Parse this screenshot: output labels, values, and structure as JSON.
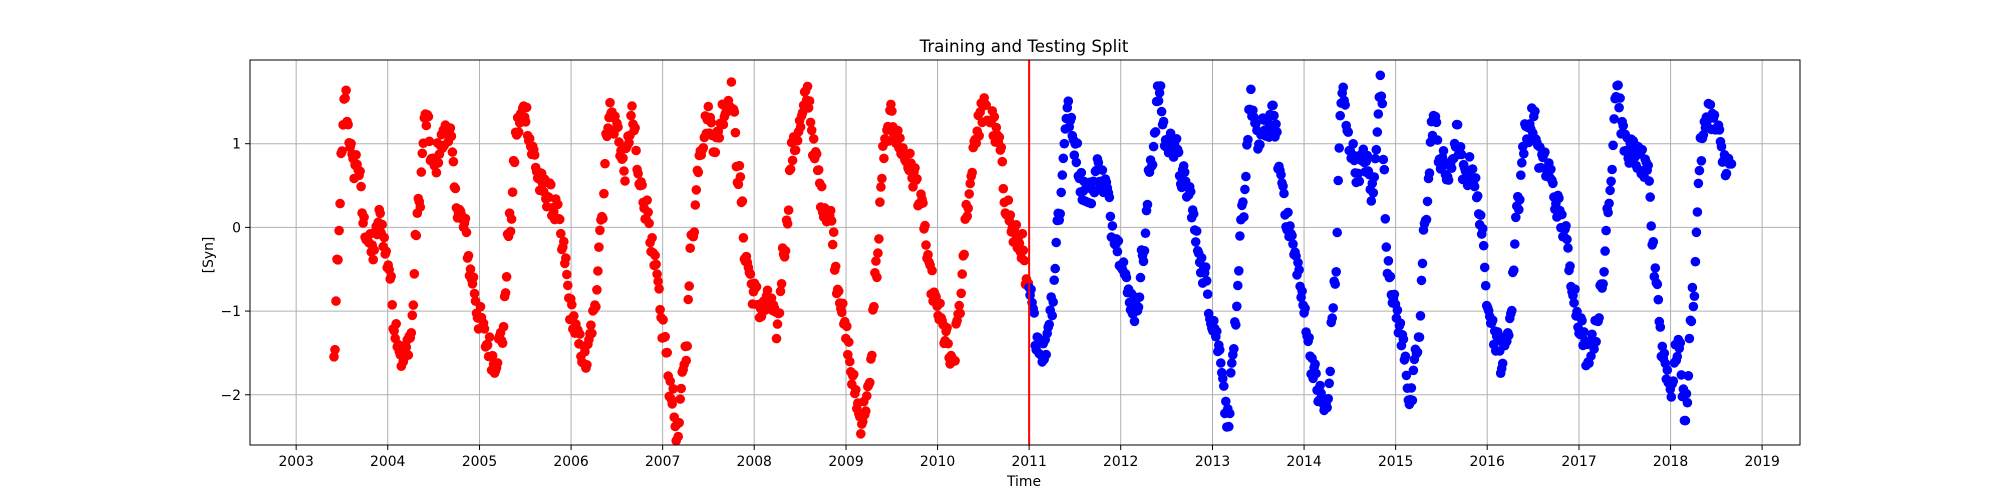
{
  "chart_data": {
    "type": "scatter",
    "title": "Training and Testing Split",
    "xlabel": "Time",
    "ylabel": "[Syn]",
    "xlim": [
      "2002-07-01",
      "2019-06-01"
    ],
    "ylim": [
      -2.6,
      2.0
    ],
    "grid": true,
    "x_ticks": [
      "2003",
      "2004",
      "2005",
      "2006",
      "2007",
      "2008",
      "2009",
      "2010",
      "2011",
      "2012",
      "2013",
      "2014",
      "2015",
      "2016",
      "2017",
      "2018",
      "2019"
    ],
    "y_ticks": [
      -2,
      -1,
      0,
      1
    ],
    "split_date": "2011-01-01",
    "split_line_color": "#ff0000",
    "series": [
      {
        "color": "#ff0000",
        "x_range": [
          "2003-06-01",
          "2011-01-01"
        ],
        "points": [
          [
            "2003-06-01",
            -1.6
          ],
          [
            "2003-06-15",
            -0.5
          ],
          [
            "2003-07-01",
            0.8
          ],
          [
            "2003-07-15",
            1.6
          ],
          [
            "2003-08-01",
            1.1
          ],
          [
            "2003-08-15",
            0.7
          ],
          [
            "2003-09-01",
            0.8
          ],
          [
            "2003-10-01",
            0.0
          ],
          [
            "2003-11-01",
            -0.3
          ],
          [
            "2003-12-01",
            0.1
          ],
          [
            "2004-01-01",
            -0.4
          ],
          [
            "2004-02-01",
            -1.2
          ],
          [
            "2004-03-01",
            -1.6
          ],
          [
            "2004-04-01",
            -1.3
          ],
          [
            "2004-05-01",
            0.2
          ],
          [
            "2004-06-01",
            1.3
          ],
          [
            "2004-07-01",
            0.7
          ],
          [
            "2004-08-01",
            1.0
          ],
          [
            "2004-09-01",
            1.2
          ],
          [
            "2004-10-01",
            0.3
          ],
          [
            "2004-11-01",
            0.0
          ],
          [
            "2004-12-01",
            -0.6
          ],
          [
            "2005-01-01",
            -1.1
          ],
          [
            "2005-02-01",
            -1.4
          ],
          [
            "2005-03-01",
            -1.6
          ],
          [
            "2005-04-01",
            -1.3
          ],
          [
            "2005-05-01",
            0.0
          ],
          [
            "2005-06-01",
            1.2
          ],
          [
            "2005-07-01",
            1.4
          ],
          [
            "2005-08-01",
            0.9
          ],
          [
            "2005-09-01",
            0.5
          ],
          [
            "2005-10-01",
            0.4
          ],
          [
            "2005-11-01",
            0.2
          ],
          [
            "2005-12-01",
            -0.3
          ],
          [
            "2006-01-01",
            -1.0
          ],
          [
            "2006-02-01",
            -1.4
          ],
          [
            "2006-03-01",
            -1.6
          ],
          [
            "2006-04-01",
            -1.1
          ],
          [
            "2006-05-01",
            0.1
          ],
          [
            "2006-06-01",
            1.4
          ],
          [
            "2006-07-01",
            1.2
          ],
          [
            "2006-08-01",
            0.7
          ],
          [
            "2006-09-01",
            1.3
          ],
          [
            "2006-10-01",
            0.5
          ],
          [
            "2006-11-01",
            0.2
          ],
          [
            "2006-12-01",
            -0.5
          ],
          [
            "2007-01-01",
            -1.2
          ],
          [
            "2007-02-01",
            -1.9
          ],
          [
            "2007-03-01",
            -2.5
          ],
          [
            "2007-04-01",
            -1.5
          ],
          [
            "2007-05-01",
            0.0
          ],
          [
            "2007-06-01",
            1.0
          ],
          [
            "2007-07-01",
            1.3
          ],
          [
            "2007-08-01",
            1.0
          ],
          [
            "2007-09-01",
            1.4
          ],
          [
            "2007-10-01",
            1.6
          ],
          [
            "2007-11-01",
            0.6
          ],
          [
            "2007-12-01",
            -0.4
          ],
          [
            "2008-01-01",
            -0.8
          ],
          [
            "2008-02-01",
            -1.0
          ],
          [
            "2008-03-01",
            -0.9
          ],
          [
            "2008-04-01",
            -1.2
          ],
          [
            "2008-05-01",
            -0.2
          ],
          [
            "2008-06-01",
            0.9
          ],
          [
            "2008-07-01",
            1.2
          ],
          [
            "2008-08-01",
            1.6
          ],
          [
            "2008-09-01",
            0.8
          ],
          [
            "2008-10-01",
            0.3
          ],
          [
            "2008-11-01",
            0.1
          ],
          [
            "2008-12-01",
            -0.7
          ],
          [
            "2009-01-01",
            -1.3
          ],
          [
            "2009-02-01",
            -1.9
          ],
          [
            "2009-03-01",
            -2.3
          ],
          [
            "2009-04-01",
            -2.0
          ],
          [
            "2009-05-01",
            -0.5
          ],
          [
            "2009-06-01",
            0.9
          ],
          [
            "2009-07-01",
            1.3
          ],
          [
            "2009-08-01",
            1.0
          ],
          [
            "2009-09-01",
            0.8
          ],
          [
            "2009-10-01",
            0.6
          ],
          [
            "2009-11-01",
            0.2
          ],
          [
            "2009-12-01",
            -0.6
          ],
          [
            "2010-01-01",
            -1.0
          ],
          [
            "2010-02-01",
            -1.3
          ],
          [
            "2010-03-01",
            -1.7
          ],
          [
            "2010-04-01",
            -0.9
          ],
          [
            "2010-05-01",
            0.3
          ],
          [
            "2010-06-01",
            1.1
          ],
          [
            "2010-07-01",
            1.4
          ],
          [
            "2010-08-01",
            1.3
          ],
          [
            "2010-09-01",
            1.0
          ],
          [
            "2010-10-01",
            0.3
          ],
          [
            "2010-11-01",
            -0.1
          ],
          [
            "2010-12-01",
            -0.2
          ],
          [
            "2010-12-25",
            -0.8
          ]
        ]
      },
      {
        "color": "#0000ff",
        "x_range": [
          "2011-01-01",
          "2018-09-01"
        ],
        "points": [
          [
            "2011-01-01",
            -0.8
          ],
          [
            "2011-02-01",
            -1.3
          ],
          [
            "2011-03-01",
            -1.5
          ],
          [
            "2011-04-01",
            -0.9
          ],
          [
            "2011-05-01",
            0.2
          ],
          [
            "2011-06-01",
            1.4
          ],
          [
            "2011-07-01",
            1.0
          ],
          [
            "2011-08-01",
            0.5
          ],
          [
            "2011-09-01",
            0.4
          ],
          [
            "2011-10-01",
            0.7
          ],
          [
            "2011-11-01",
            0.5
          ],
          [
            "2011-12-01",
            0.0
          ],
          [
            "2012-01-01",
            -0.3
          ],
          [
            "2012-02-01",
            -0.8
          ],
          [
            "2012-03-01",
            -1.0
          ],
          [
            "2012-04-01",
            -0.3
          ],
          [
            "2012-05-01",
            0.8
          ],
          [
            "2012-06-01",
            1.6
          ],
          [
            "2012-07-01",
            1.0
          ],
          [
            "2012-08-01",
            1.0
          ],
          [
            "2012-09-01",
            0.6
          ],
          [
            "2012-10-01",
            0.4
          ],
          [
            "2012-11-01",
            -0.2
          ],
          [
            "2012-12-01",
            -0.6
          ],
          [
            "2013-01-01",
            -1.1
          ],
          [
            "2013-02-01",
            -1.5
          ],
          [
            "2013-03-01",
            -2.3
          ],
          [
            "2013-04-01",
            -1.3
          ],
          [
            "2013-05-01",
            0.2
          ],
          [
            "2013-06-01",
            1.5
          ],
          [
            "2013-07-01",
            1.0
          ],
          [
            "2013-08-01",
            1.2
          ],
          [
            "2013-09-01",
            1.3
          ],
          [
            "2013-10-01",
            0.6
          ],
          [
            "2013-11-01",
            0.0
          ],
          [
            "2013-12-01",
            -0.4
          ],
          [
            "2014-01-01",
            -1.0
          ],
          [
            "2014-02-01",
            -1.6
          ],
          [
            "2014-03-01",
            -2.0
          ],
          [
            "2014-04-01",
            -2.2
          ],
          [
            "2014-05-01",
            -0.8
          ],
          [
            "2014-06-01",
            1.6
          ],
          [
            "2014-07-01",
            1.0
          ],
          [
            "2014-08-01",
            0.7
          ],
          [
            "2014-09-01",
            0.8
          ],
          [
            "2014-10-01",
            0.4
          ],
          [
            "2014-11-01",
            1.7
          ],
          [
            "2014-12-01",
            -0.4
          ],
          [
            "2015-01-01",
            -1.0
          ],
          [
            "2015-02-01",
            -1.4
          ],
          [
            "2015-03-01",
            -2.1
          ],
          [
            "2015-04-01",
            -1.4
          ],
          [
            "2015-05-01",
            0.2
          ],
          [
            "2015-06-01",
            1.3
          ],
          [
            "2015-07-01",
            0.8
          ],
          [
            "2015-08-01",
            0.6
          ],
          [
            "2015-09-01",
            1.1
          ],
          [
            "2015-10-01",
            0.6
          ],
          [
            "2015-11-01",
            0.7
          ],
          [
            "2015-12-01",
            0.2
          ],
          [
            "2016-01-01",
            -0.8
          ],
          [
            "2016-02-01",
            -1.3
          ],
          [
            "2016-03-01",
            -1.6
          ],
          [
            "2016-04-01",
            -1.1
          ],
          [
            "2016-05-01",
            0.3
          ],
          [
            "2016-06-01",
            1.1
          ],
          [
            "2016-07-01",
            1.3
          ],
          [
            "2016-08-01",
            0.8
          ],
          [
            "2016-09-01",
            0.7
          ],
          [
            "2016-10-01",
            0.3
          ],
          [
            "2016-11-01",
            0.0
          ],
          [
            "2016-12-01",
            -0.6
          ],
          [
            "2017-01-01",
            -1.1
          ],
          [
            "2017-02-01",
            -1.5
          ],
          [
            "2017-03-01",
            -1.3
          ],
          [
            "2017-04-01",
            -0.8
          ],
          [
            "2017-05-01",
            0.4
          ],
          [
            "2017-06-01",
            1.7
          ],
          [
            "2017-07-01",
            1.0
          ],
          [
            "2017-08-01",
            0.9
          ],
          [
            "2017-09-01",
            0.8
          ],
          [
            "2017-10-01",
            0.6
          ],
          [
            "2017-11-01",
            -0.5
          ],
          [
            "2017-12-01",
            -1.5
          ],
          [
            "2018-01-01",
            -1.9
          ],
          [
            "2018-02-01",
            -1.4
          ],
          [
            "2018-03-01",
            -2.2
          ],
          [
            "2018-04-01",
            -0.8
          ],
          [
            "2018-05-01",
            0.9
          ],
          [
            "2018-06-01",
            1.4
          ],
          [
            "2018-07-01",
            1.2
          ],
          [
            "2018-08-01",
            0.8
          ],
          [
            "2018-09-01",
            0.7
          ]
        ]
      }
    ]
  }
}
